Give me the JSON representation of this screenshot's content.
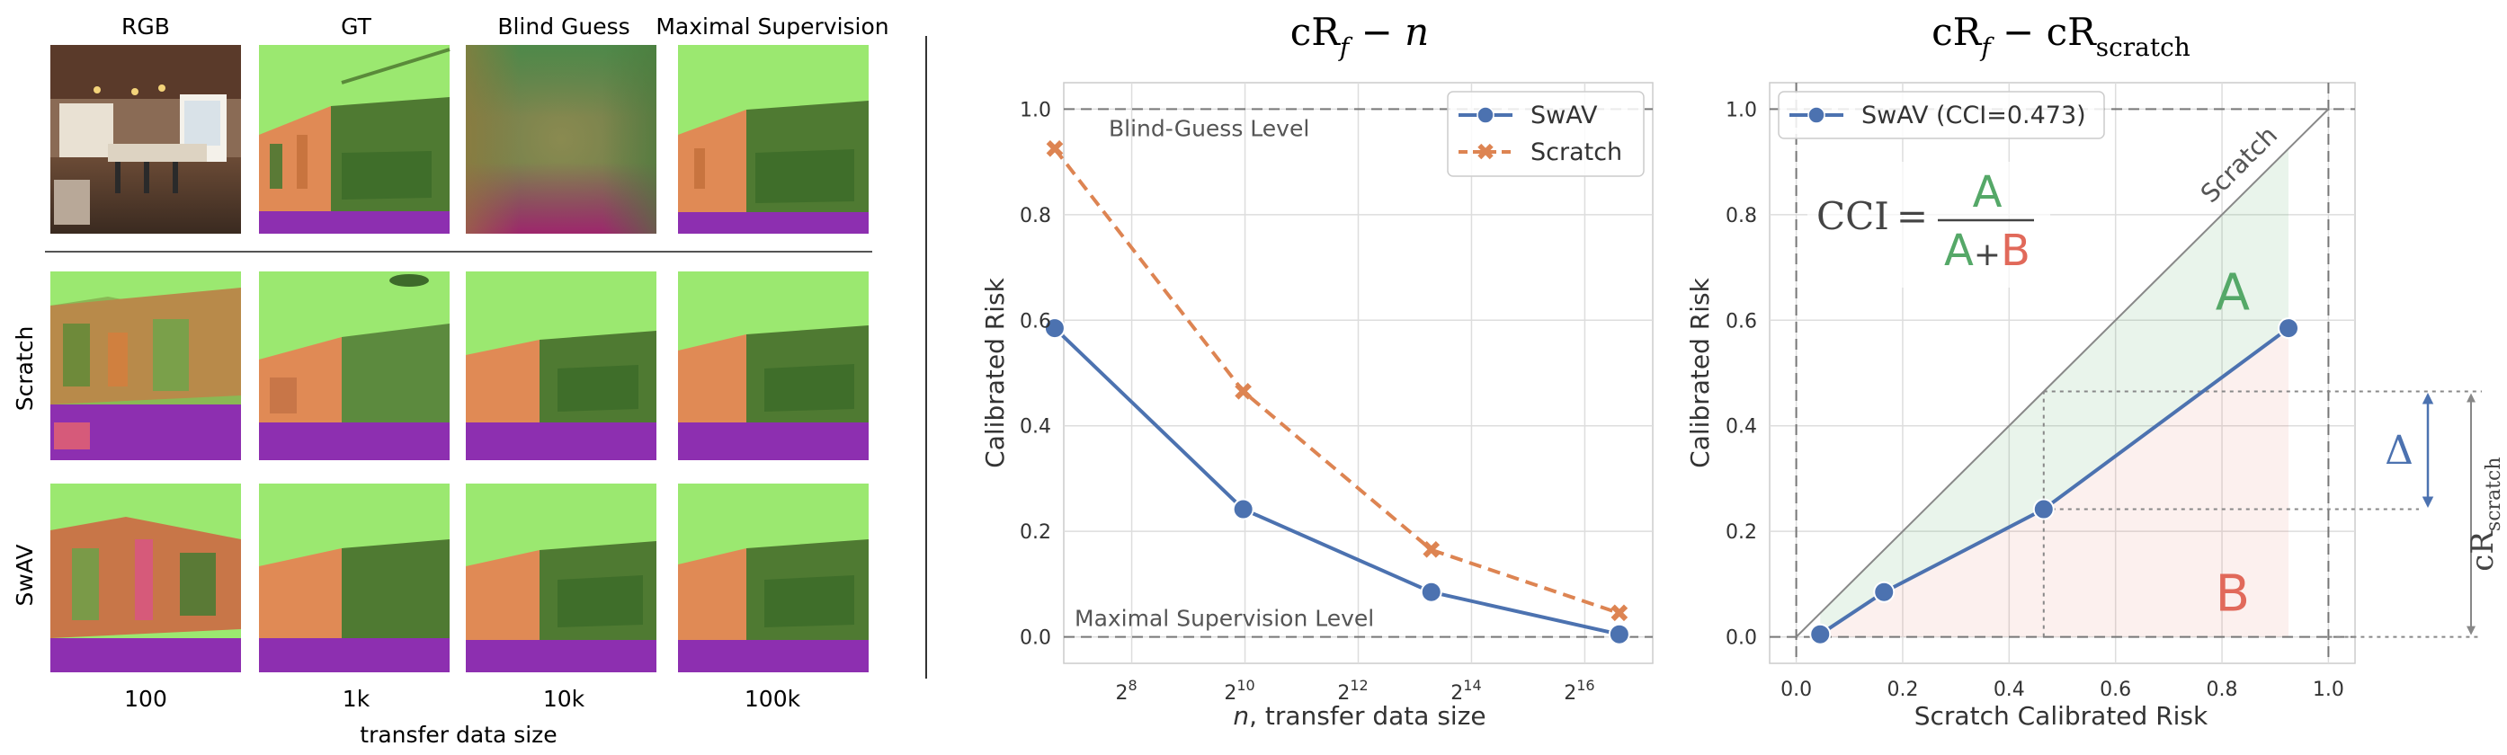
{
  "left_panel": {
    "column_headers": [
      "RGB",
      "GT",
      "Blind Guess",
      "Maximal Supervision"
    ],
    "row_labels": [
      "Scratch",
      "SwAV"
    ],
    "bottom_ticks": [
      "100",
      "1k",
      "10k",
      "100k"
    ],
    "bottom_label": "transfer data size"
  },
  "colors": {
    "swav": "#4c72b0",
    "scratch": "#dd8452",
    "region_a": "#55a868",
    "region_b": "#e1695a",
    "normal_green": "#9be870",
    "normal_dark_green": "#4f7a32",
    "normal_orange": "#e08a55",
    "normal_purple": "#8d2fb0"
  },
  "chart_data": [
    {
      "type": "line",
      "title": "cR_f − n",
      "title_parts": {
        "main": "cR",
        "sub": "f",
        "rest": " − n"
      },
      "xlabel_italic": "n",
      "xlabel_rest": ", transfer data size",
      "ylabel": "Calibrated Risk",
      "x_scale": "log2",
      "xlim": [
        6.8,
        17.2
      ],
      "ylim": [
        -0.05,
        1.05
      ],
      "x_ticks": [
        8,
        10,
        12,
        14,
        16
      ],
      "x_tick_base": "2",
      "x_tick_exponents": [
        "8",
        "10",
        "12",
        "14",
        "16"
      ],
      "y_ticks": [
        0.0,
        0.2,
        0.4,
        0.6,
        0.8,
        1.0
      ],
      "y_tick_labels": [
        "0.0",
        "0.2",
        "0.4",
        "0.6",
        "0.8",
        "1.0"
      ],
      "series": [
        {
          "name": "SwAV",
          "x": [
            6.64,
            9.97,
            13.29,
            16.61
          ],
          "values": [
            0.585,
            0.242,
            0.085,
            0.005
          ],
          "style": "solid",
          "marker": "circle"
        },
        {
          "name": "Scratch",
          "x": [
            6.64,
            9.97,
            13.29,
            16.61
          ],
          "values": [
            0.925,
            0.465,
            0.165,
            0.045
          ],
          "style": "dashed",
          "marker": "x"
        }
      ],
      "reference_lines": [
        {
          "y": 1.0,
          "label": "Blind-Guess Level"
        },
        {
          "y": 0.0,
          "label": "Maximal Supervision Level"
        }
      ],
      "legend": [
        "SwAV",
        "Scratch"
      ],
      "legend_position": "top-right",
      "grid": true
    },
    {
      "type": "line",
      "title": "cR_f − cR_scratch",
      "title_parts": {
        "main": "cR",
        "sub": "f",
        "mid": " − cR",
        "sub2": "scratch"
      },
      "xlabel": "Scratch Calibrated Risk",
      "ylabel": "Calibrated Risk",
      "xlim": [
        -0.05,
        1.05
      ],
      "ylim": [
        -0.05,
        1.05
      ],
      "x_ticks": [
        0.0,
        0.2,
        0.4,
        0.6,
        0.8,
        1.0
      ],
      "x_tick_labels": [
        "0.0",
        "0.2",
        "0.4",
        "0.6",
        "0.8",
        "1.0"
      ],
      "y_ticks": [
        0.0,
        0.2,
        0.4,
        0.6,
        0.8,
        1.0
      ],
      "y_tick_labels": [
        "0.0",
        "0.2",
        "0.4",
        "0.6",
        "0.8",
        "1.0"
      ],
      "series": [
        {
          "name": "SwAV (CCI=0.473)",
          "x": [
            0.045,
            0.165,
            0.465,
            0.925
          ],
          "values": [
            0.005,
            0.085,
            0.242,
            0.585
          ]
        }
      ],
      "diagonal_label": "Scratch",
      "region_a_label": "A",
      "region_b_label": "B",
      "formula": {
        "lhs": "CCI",
        "eq": "=",
        "num": "A",
        "den_a": "A",
        "plus": "+",
        "den_b": "B"
      },
      "delta_label": "Δ",
      "delta_range": [
        0.242,
        0.465
      ],
      "cr_scratch_label": {
        "main": "cR",
        "sub": "scratch"
      },
      "cr_scratch_range": [
        0.0,
        0.465
      ],
      "reference_point": [
        0.465,
        0.242
      ],
      "legend": [
        "SwAV (CCI=0.473)"
      ],
      "legend_position": "top-left",
      "grid": true
    }
  ]
}
